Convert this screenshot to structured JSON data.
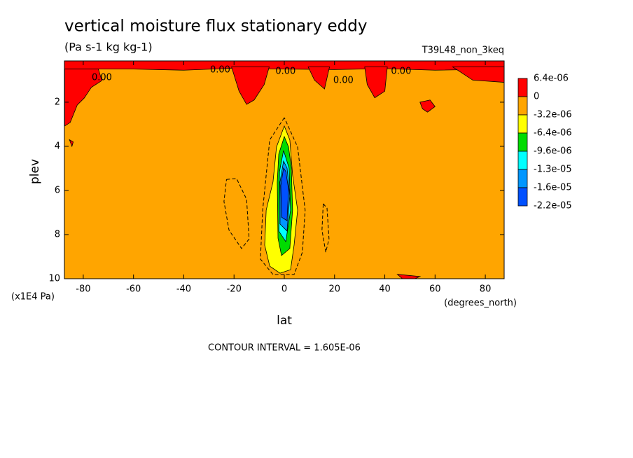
{
  "chart_data": {
    "type": "contour",
    "title": "vertical moisture flux stationary eddy",
    "subtitle": "(Pa s-1 kg kg-1)",
    "run_label": "T39L48_non_3keq",
    "x_label": "lat",
    "x_unit": "(degrees_north)",
    "y_label": "plev",
    "y_unit": "(x1E4 Pa)",
    "footer": "CONTOUR INTERVAL = 1.605E-06",
    "xlim": [
      -87.5,
      87.5
    ],
    "xticks": [
      -80,
      -60,
      -40,
      -20,
      0,
      20,
      40,
      60,
      80
    ],
    "ylim": [
      10,
      0.13
    ],
    "yticks": [
      2,
      4,
      6,
      8,
      10
    ],
    "colorbar": {
      "levels": [
        {
          "value": 6.4e-06,
          "label": "6.4e-06"
        },
        0,
        {
          "value": -3.2e-06,
          "label": "-3.2e-06"
        },
        {
          "value": -6.4e-06,
          "label": "-6.4e-06"
        },
        {
          "value": -9.6e-06,
          "label": "-9.6e-06"
        },
        {
          "value": -1.3e-05,
          "label": "-1.3e-05"
        },
        {
          "value": -1.6e-05,
          "label": "-1.6e-05"
        },
        {
          "value": -2.2e-05,
          "label": "-2.2e-05"
        }
      ],
      "colors": [
        "#ff0000",
        "#ffa500",
        "#ffff00",
        "#00dc00",
        "#00ffff",
        "#0096ff",
        "#0050ff"
      ]
    },
    "fills": [
      {
        "lower": -3.2e-06,
        "lat": [
          -87.5,
          87.5,
          87.5,
          -87.5
        ],
        "plev": [
          0.13,
          0.13,
          10,
          10
        ]
      },
      {
        "lower": 0,
        "lat": [
          -87.5,
          87.5,
          87.5,
          60,
          40,
          20,
          0,
          -20,
          -40,
          -60,
          -87.5
        ],
        "plev": [
          0.13,
          0.13,
          0.5,
          0.55,
          0.48,
          0.52,
          0.5,
          0.46,
          0.55,
          0.5,
          0.5
        ]
      },
      {
        "lower": 0,
        "lat": [
          -87.4,
          -74,
          -72.6,
          -76.8,
          -79.6,
          -82.4,
          -85.2,
          -87.4
        ],
        "plev": [
          0.5,
          0.5,
          1.02,
          1.33,
          1.81,
          2.13,
          2.92,
          3.08
        ]
      },
      {
        "lower": 0,
        "lat": [
          -21,
          -6,
          -8,
          -12,
          -15,
          -18
        ],
        "plev": [
          0.4,
          0.4,
          1.2,
          1.9,
          2.1,
          1.5
        ]
      },
      {
        "lower": 0,
        "lat": [
          9.5,
          18,
          16,
          12
        ],
        "plev": [
          0.4,
          0.4,
          1.4,
          1.0
        ]
      },
      {
        "lower": 0,
        "lat": [
          32,
          41,
          40,
          36,
          33
        ],
        "plev": [
          0.4,
          0.4,
          1.5,
          1.8,
          1.2
        ]
      },
      {
        "lower": 0,
        "lat": [
          54,
          58,
          60,
          57,
          55
        ],
        "plev": [
          2.0,
          1.9,
          2.2,
          2.45,
          2.3
        ]
      },
      {
        "lower": 0,
        "lat": [
          67,
          87.5,
          87.5,
          75
        ],
        "plev": [
          0.4,
          0.4,
          1.1,
          1.0
        ]
      },
      {
        "lower": 0,
        "lat": [
          45,
          54,
          52,
          47
        ],
        "plev": [
          9.8,
          9.9,
          10,
          10
        ]
      },
      {
        "lower": 0,
        "lat": [
          -85.5,
          -84,
          -84.5
        ],
        "plev": [
          3.7,
          3.8,
          4.0
        ]
      },
      {
        "lower": -6.4e-06,
        "lat": [
          0,
          -3.1,
          -4.5,
          -7.2,
          -7.8,
          -5.8,
          -1.7,
          2.5,
          3.9,
          5.3,
          3.3,
          2.2
        ],
        "plev": [
          3.08,
          4.03,
          5.62,
          6.89,
          8.48,
          9.43,
          9.75,
          9.59,
          8.48,
          6.89,
          5.3,
          3.71
        ]
      },
      {
        "lower": -9.6e-06,
        "lat": [
          0,
          -2.2,
          -2.8,
          -2.5,
          -1.1,
          2.2,
          3.3,
          2.8,
          1.7
        ],
        "plev": [
          3.56,
          4.35,
          5.62,
          8.16,
          8.95,
          8.63,
          6.89,
          4.98,
          4.03
        ]
      },
      {
        "lower": -1.3e-05,
        "lat": [
          -0.3,
          -1.9,
          -2.2,
          0.6,
          2.5,
          1.9
        ],
        "plev": [
          4.19,
          5.14,
          7.84,
          8.32,
          6.89,
          4.98
        ]
      },
      {
        "lower": -1.6e-05,
        "lat": [
          -0.3,
          -1.7,
          -1.7,
          1.1,
          2.2,
          1.1
        ],
        "plev": [
          4.67,
          5.62,
          7.52,
          7.84,
          6.25,
          4.98
        ]
      },
      {
        "lower": -2.2e-05,
        "lat": [
          -0.3,
          -1.4,
          -1.1,
          1.1,
          1.7,
          0.6
        ],
        "plev": [
          4.98,
          5.78,
          7.21,
          7.37,
          5.94,
          5.14
        ]
      }
    ],
    "contours": [
      {
        "lat": [
          0,
          -5.8,
          -8.6,
          -9.5,
          -4.5,
          3.9,
          7.2,
          8.3,
          5.3,
          0
        ],
        "plev": [
          2.7,
          3.71,
          6.89,
          9.11,
          9.81,
          9.81,
          8.8,
          6.89,
          4.03,
          2.7
        ]
      },
      {
        "lat": [
          -23,
          -19,
          -15,
          -14,
          -17,
          -22,
          -24,
          -23
        ],
        "plev": [
          5.5,
          5.46,
          6.4,
          8.2,
          8.63,
          7.8,
          6.5,
          5.5
        ]
      },
      {
        "lat": [
          15.5,
          17,
          17.8,
          16.5,
          15,
          15.5
        ],
        "plev": [
          6.6,
          6.8,
          8.2,
          8.8,
          7.8,
          6.6
        ]
      }
    ],
    "contour_labels": [
      {
        "text": "0.00",
        "lat": -72.6,
        "plev": 0.89
      },
      {
        "text": "0.00",
        "lat": -25.5,
        "plev": 0.54
      },
      {
        "text": "0.00",
        "lat": 0.5,
        "plev": 0.6
      },
      {
        "text": "0.00",
        "lat": 23.5,
        "plev": 1.02
      },
      {
        "text": "0.00",
        "lat": 46.5,
        "plev": 0.6
      }
    ]
  }
}
